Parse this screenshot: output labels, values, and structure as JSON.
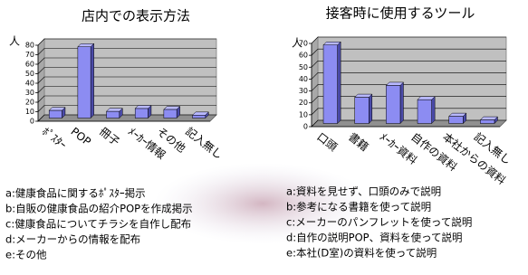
{
  "chart_data": [
    {
      "type": "bar",
      "title": "店内での表示方法",
      "y_label": "人",
      "categories": [
        "ﾎﾟｽﾀｰ",
        "POP",
        "冊子",
        "ﾒｰｶｰ情報",
        "その他",
        "記入無し"
      ],
      "values": [
        8,
        75,
        7,
        10,
        9,
        3
      ],
      "color": "#8c8cf2",
      "ylim": [
        0,
        80
      ],
      "yticks": [
        0,
        10,
        20,
        30,
        40,
        50,
        60,
        70,
        80
      ],
      "grid": true
    },
    {
      "type": "bar",
      "title": "接客時に使用するツール",
      "y_label": "人",
      "categories": [
        "口頭",
        "書籍",
        "ﾒｰｶｰ資料",
        "自作の資料",
        "本社からの資料",
        "記入無し"
      ],
      "values": [
        66,
        22,
        32,
        20,
        6,
        3
      ],
      "color": "#8c8cf2",
      "ylim": [
        0,
        70
      ],
      "yticks": [
        0,
        10,
        20,
        30,
        40,
        50,
        60,
        70
      ],
      "grid": true
    }
  ],
  "option_lists": [
    [
      "a:健康食品に関するﾎﾟｽﾀｰ掲示",
      "b:自販の健康食品の紹介POPを作成掲示",
      "c:健康食品についてチラシを自作し配布",
      "d:メーカーからの情報を配布",
      "e:その他"
    ],
    [
      "a:資料を見せず、口頭のみで説明",
      "b:参考になる書籍を使って説明",
      "c:メーカーのパンフレットを使って説明",
      "d:自作の説明POP、資料を使って説明",
      "e:本社(D室)の資料を使って説明"
    ]
  ]
}
